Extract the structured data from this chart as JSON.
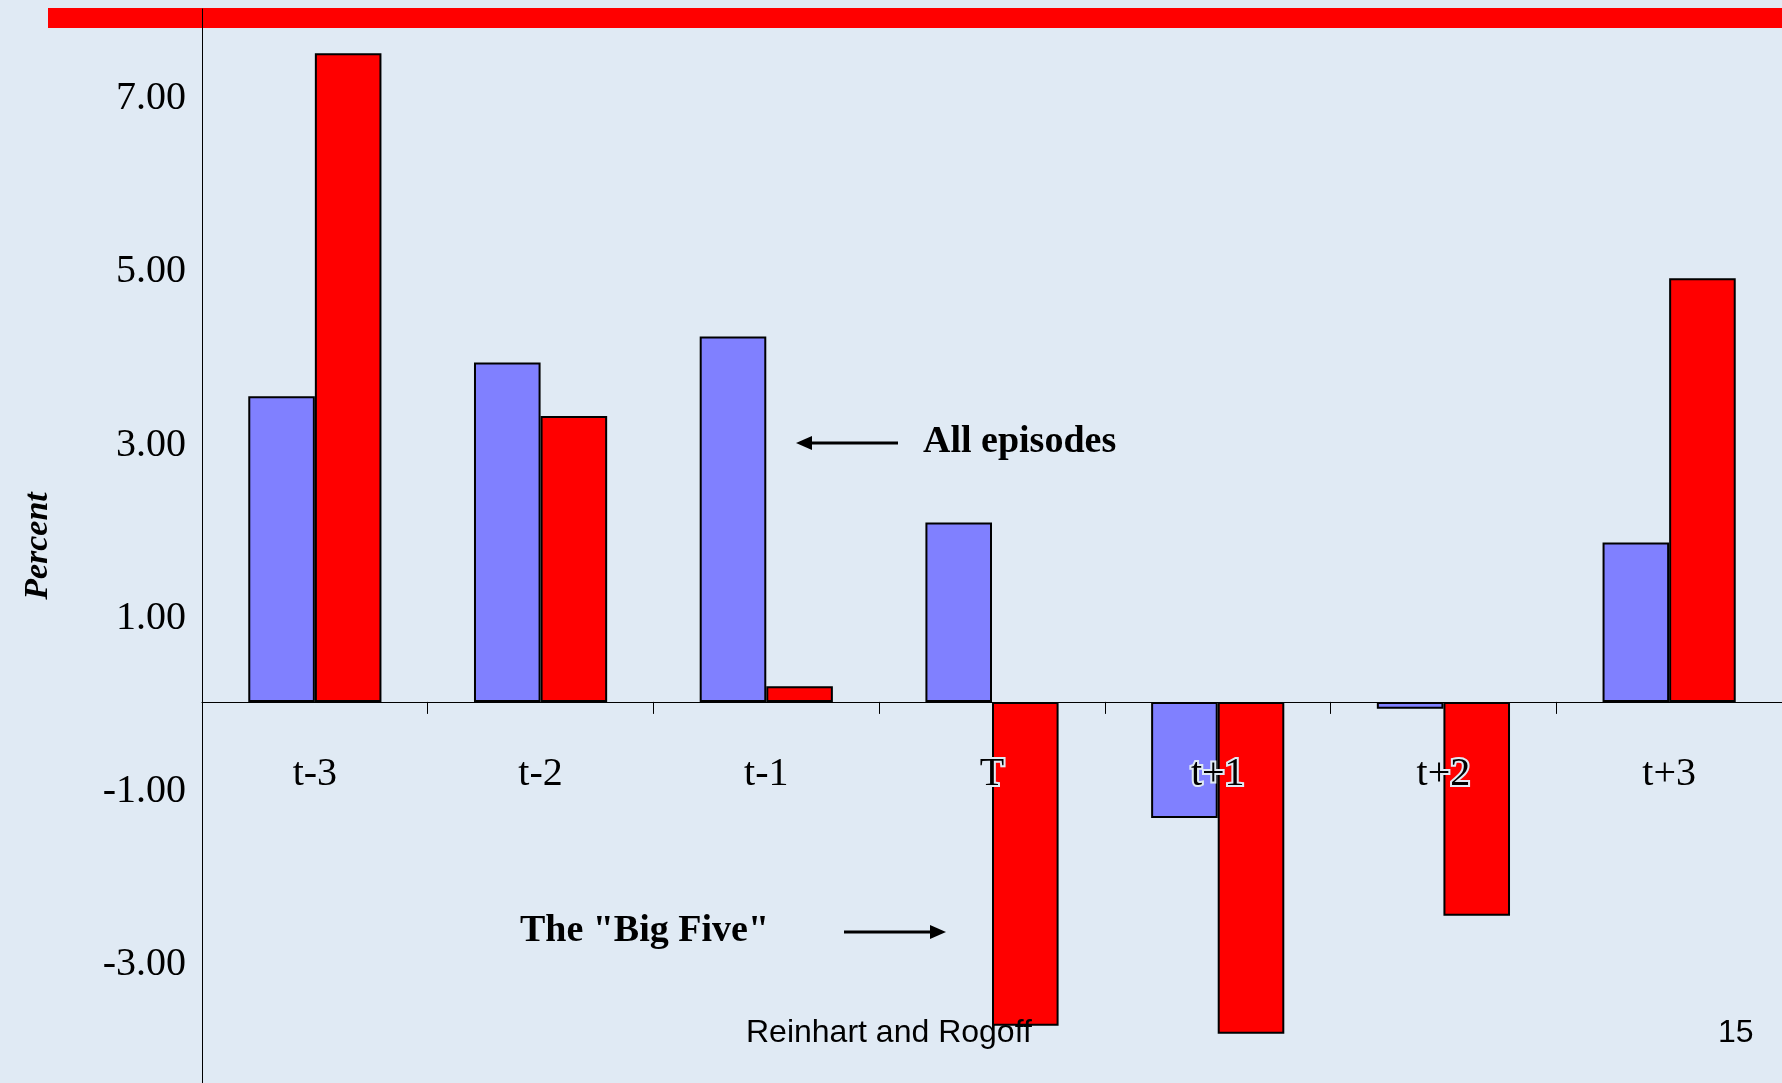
{
  "chart_data": {
    "type": "bar",
    "ylabel": "Percent",
    "categories": [
      "t-3",
      "t-2",
      "t-1",
      "T",
      "t+1",
      "t+2",
      "t+3"
    ],
    "series": [
      {
        "color": "#8080ff",
        "values": [
          3.53,
          3.92,
          4.22,
          2.07,
          -1.34,
          -0.08,
          1.84
        ]
      },
      {
        "color": "#ff0000",
        "values": [
          7.49,
          3.3,
          0.18,
          -3.74,
          -3.83,
          -2.47,
          4.89
        ]
      }
    ],
    "ylim": [
      -4.4,
      8
    ],
    "yticks": [
      {
        "value": -3,
        "label": "-3.00"
      },
      {
        "value": -1,
        "label": "-1.00"
      },
      {
        "value": 1,
        "label": "1.00"
      },
      {
        "value": 3,
        "label": "3.00"
      },
      {
        "value": 5,
        "label": "5.00"
      },
      {
        "value": 7,
        "label": "7.00"
      }
    ],
    "grid": false,
    "annotations": [
      "All episodes",
      "The \"Big Five\"",
      "Reinhart and Rogoff",
      "15"
    ]
  }
}
